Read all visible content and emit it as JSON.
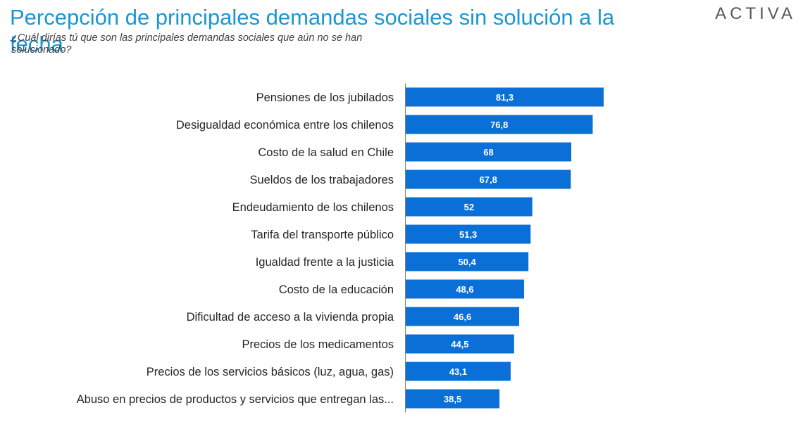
{
  "header": {
    "title": "Percepción de principales demandas sociales sin solución a la fecha",
    "subtitle": "¿Cuál dirías tú que son las principales demandas sociales que aún no se han solucionado?",
    "logo_text": "ACTIVA"
  },
  "colors": {
    "bar": "#0a6fd6",
    "title": "#1a96d4",
    "axis": "#7f7f7f"
  },
  "chart_data": {
    "type": "bar",
    "orientation": "horizontal",
    "title": "Percepción de principales demandas sociales sin solución a la fecha",
    "categories": [
      "Pensiones de los jubilados",
      "Desigualdad económica entre los chilenos",
      "Costo de la salud en Chile",
      "Sueldos de los trabajadores",
      "Endeudamiento de los chilenos",
      "Tarifa del transporte público",
      "Igualdad frente a la justicia",
      "Costo de la educación",
      "Dificultad de acceso a la vivienda propia",
      "Precios de los medicamentos",
      "Precios de los servicios básicos (luz, agua, gas)",
      "Abuso en precios de productos y servicios que entregan las..."
    ],
    "values": [
      81.3,
      76.8,
      68,
      67.8,
      52,
      51.3,
      50.4,
      48.6,
      46.6,
      44.5,
      43.1,
      38.5
    ],
    "value_labels": [
      "81,3",
      "76,8",
      "68",
      "67,8",
      "52",
      "51,3",
      "50,4",
      "48,6",
      "46,6",
      "44,5",
      "43,1",
      "38,5"
    ],
    "xlim": [
      0,
      81.3
    ],
    "grid": false,
    "legend": "none"
  }
}
